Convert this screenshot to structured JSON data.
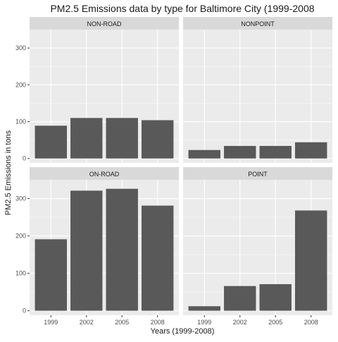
{
  "chart_data": {
    "type": "bar",
    "title": "PM2.5 Emissions data by type for Baltimore City (1999-2008",
    "xlabel": "Years (1999-2008)",
    "ylabel": "PM2.5 Emissions in tons",
    "categories": [
      "1999",
      "2002",
      "2005",
      "2008"
    ],
    "ylim": [
      0,
      350
    ],
    "yticks": [
      0,
      100,
      200,
      300
    ],
    "grid": true,
    "layout": "2x2 facets, shared axes",
    "colors": {
      "bar": "#595959",
      "panel_background": "#ebebeb",
      "strip_background": "#d9d9d9",
      "grid": "#ffffff"
    },
    "facets": [
      {
        "label": "NON-ROAD",
        "values": [
          89,
          110,
          110,
          104
        ]
      },
      {
        "label": "NONPOINT",
        "values": [
          23,
          34,
          34,
          44
        ]
      },
      {
        "label": "ON-ROAD",
        "values": [
          191,
          321,
          326,
          281
        ]
      },
      {
        "label": "POINT",
        "values": [
          12,
          66,
          71,
          268
        ]
      }
    ]
  }
}
